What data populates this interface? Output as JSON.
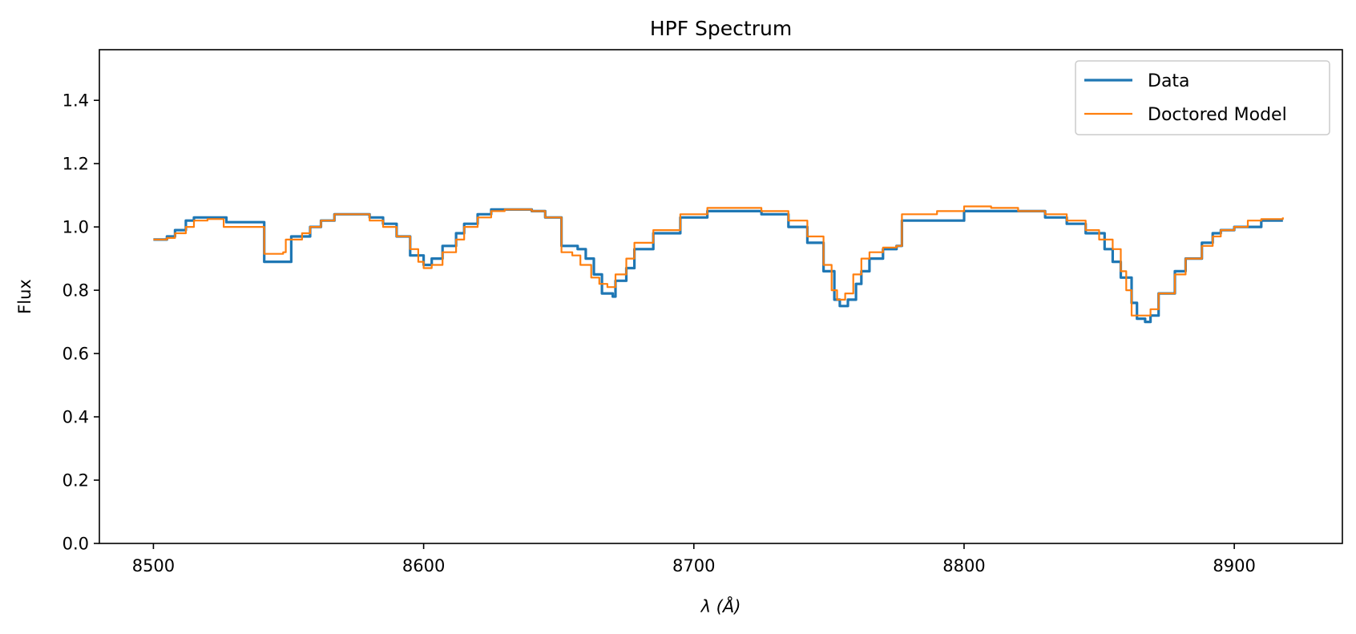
{
  "chart_data": {
    "type": "line",
    "title": "HPF Spectrum",
    "xlabel": "λ (Å)",
    "ylabel": "Flux",
    "xlim": [
      8480,
      8940
    ],
    "ylim": [
      0,
      1.56
    ],
    "xticks": [
      "8500",
      "8600",
      "8700",
      "8800",
      "8900"
    ],
    "yticks": [
      "0.0",
      "0.2",
      "0.4",
      "0.6",
      "0.8",
      "1.0",
      "1.2",
      "1.4"
    ],
    "grid": false,
    "legend_position": "top-right",
    "series": [
      {
        "name": "Data",
        "color": "#1f77b4",
        "x": [
          8500,
          8505,
          8508,
          8512,
          8515,
          8525,
          8527,
          8540,
          8541,
          8550,
          8551,
          8555,
          8558,
          8562,
          8567,
          8575,
          8580,
          8585,
          8590,
          8595,
          8600,
          8603,
          8607,
          8612,
          8615,
          8620,
          8625,
          8630,
          8640,
          8645,
          8650,
          8651,
          8657,
          8660,
          8663,
          8666,
          8670,
          8671,
          8675,
          8678,
          8685,
          8695,
          8705,
          8715,
          8725,
          8735,
          8742,
          8748,
          8752,
          8754,
          8757,
          8760,
          8762,
          8765,
          8770,
          8775,
          8777,
          8790,
          8800,
          8810,
          8820,
          8830,
          8838,
          8845,
          8852,
          8855,
          8858,
          8862,
          8864,
          8867,
          8869,
          8872,
          8878,
          8882,
          8888,
          8892,
          8895,
          8900,
          8905,
          8910,
          8918
        ],
        "y": [
          0.96,
          0.97,
          0.99,
          1.02,
          1.03,
          1.03,
          1.015,
          1.015,
          0.89,
          0.89,
          0.97,
          0.97,
          1.0,
          1.02,
          1.04,
          1.04,
          1.03,
          1.01,
          0.97,
          0.91,
          0.88,
          0.9,
          0.94,
          0.98,
          1.01,
          1.04,
          1.055,
          1.055,
          1.05,
          1.03,
          1.03,
          0.94,
          0.93,
          0.9,
          0.85,
          0.79,
          0.78,
          0.83,
          0.87,
          0.93,
          0.98,
          1.03,
          1.05,
          1.05,
          1.04,
          1.0,
          0.95,
          0.86,
          0.77,
          0.75,
          0.77,
          0.82,
          0.86,
          0.9,
          0.93,
          0.94,
          1.02,
          1.02,
          1.05,
          1.05,
          1.05,
          1.03,
          1.01,
          0.98,
          0.93,
          0.89,
          0.84,
          0.76,
          0.71,
          0.7,
          0.72,
          0.79,
          0.86,
          0.9,
          0.95,
          0.98,
          0.99,
          1.0,
          1.0,
          1.02,
          1.02
        ]
      },
      {
        "name": "Doctored Model",
        "color": "#ff7f0e",
        "x": [
          8500,
          8505,
          8508,
          8512,
          8515,
          8520,
          8526,
          8540,
          8541,
          8548,
          8549,
          8555,
          8558,
          8562,
          8567,
          8575,
          8580,
          8585,
          8590,
          8595,
          8598,
          8600,
          8603,
          8607,
          8612,
          8615,
          8620,
          8625,
          8630,
          8640,
          8645,
          8650,
          8651,
          8655,
          8658,
          8662,
          8665,
          8668,
          8671,
          8675,
          8678,
          8685,
          8695,
          8705,
          8715,
          8725,
          8735,
          8742,
          8748,
          8751,
          8753,
          8756,
          8759,
          8762,
          8765,
          8770,
          8775,
          8777,
          8790,
          8800,
          8810,
          8820,
          8830,
          8838,
          8845,
          8850,
          8855,
          8858,
          8860,
          8862,
          8866,
          8869,
          8872,
          8878,
          8882,
          8888,
          8892,
          8895,
          8900,
          8905,
          8910,
          8918
        ],
        "y": [
          0.96,
          0.965,
          0.98,
          1.0,
          1.02,
          1.025,
          1.0,
          1.0,
          0.915,
          0.92,
          0.96,
          0.98,
          1.0,
          1.02,
          1.04,
          1.04,
          1.02,
          1.0,
          0.97,
          0.93,
          0.89,
          0.87,
          0.88,
          0.92,
          0.96,
          1.0,
          1.03,
          1.05,
          1.055,
          1.05,
          1.03,
          1.03,
          0.92,
          0.91,
          0.88,
          0.84,
          0.82,
          0.81,
          0.85,
          0.9,
          0.95,
          0.99,
          1.04,
          1.06,
          1.06,
          1.05,
          1.02,
          0.97,
          0.88,
          0.8,
          0.77,
          0.79,
          0.85,
          0.9,
          0.92,
          0.935,
          0.94,
          1.04,
          1.05,
          1.065,
          1.06,
          1.05,
          1.04,
          1.02,
          0.99,
          0.96,
          0.93,
          0.86,
          0.8,
          0.72,
          0.72,
          0.74,
          0.79,
          0.85,
          0.9,
          0.94,
          0.97,
          0.99,
          1.0,
          1.02,
          1.025,
          1.03
        ]
      }
    ]
  }
}
